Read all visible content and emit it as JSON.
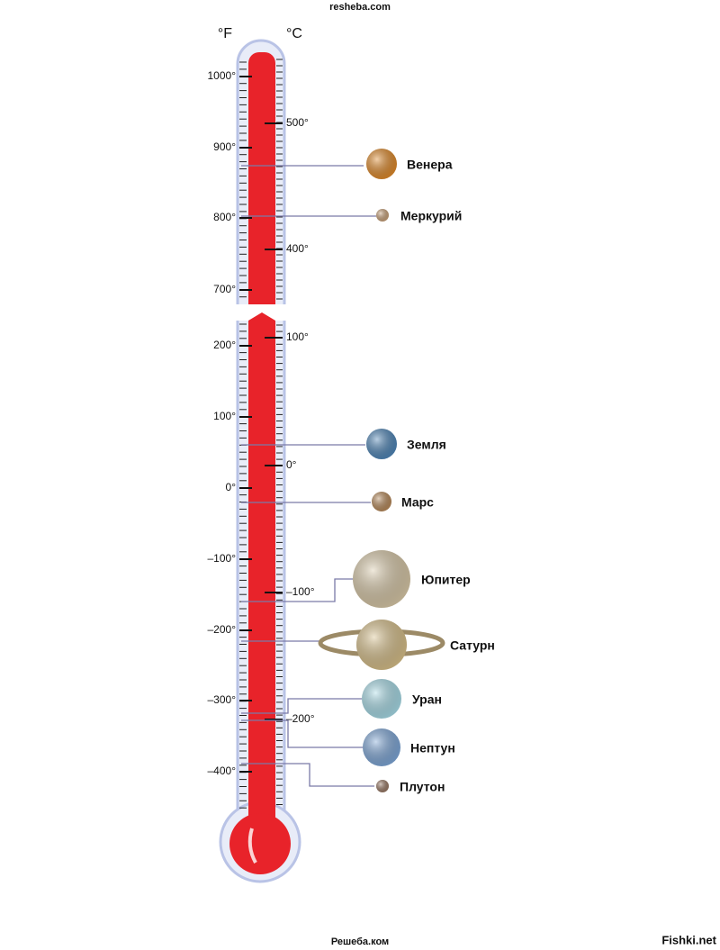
{
  "header": "resheba.com",
  "units": {
    "fahrenheit": "°F",
    "celsius": "°C"
  },
  "fahrenheit_ticks": [
    "1000°",
    "900°",
    "800°",
    "700°",
    "200°",
    "100°",
    "0°",
    "–100°",
    "–200°",
    "–300°",
    "–400°"
  ],
  "celsius_ticks": [
    "500°",
    "400°",
    "100°",
    "0°",
    "–100°",
    "–200°"
  ],
  "planets": [
    {
      "name": "Венера"
    },
    {
      "name": "Меркурий"
    },
    {
      "name": "Земля"
    },
    {
      "name": "Марс"
    },
    {
      "name": "Юпитер"
    },
    {
      "name": "Сатурн"
    },
    {
      "name": "Уран"
    },
    {
      "name": "Нептун"
    },
    {
      "name": "Плутон"
    }
  ],
  "footer": "Решеба.ком",
  "watermark": "Fishki.net"
}
